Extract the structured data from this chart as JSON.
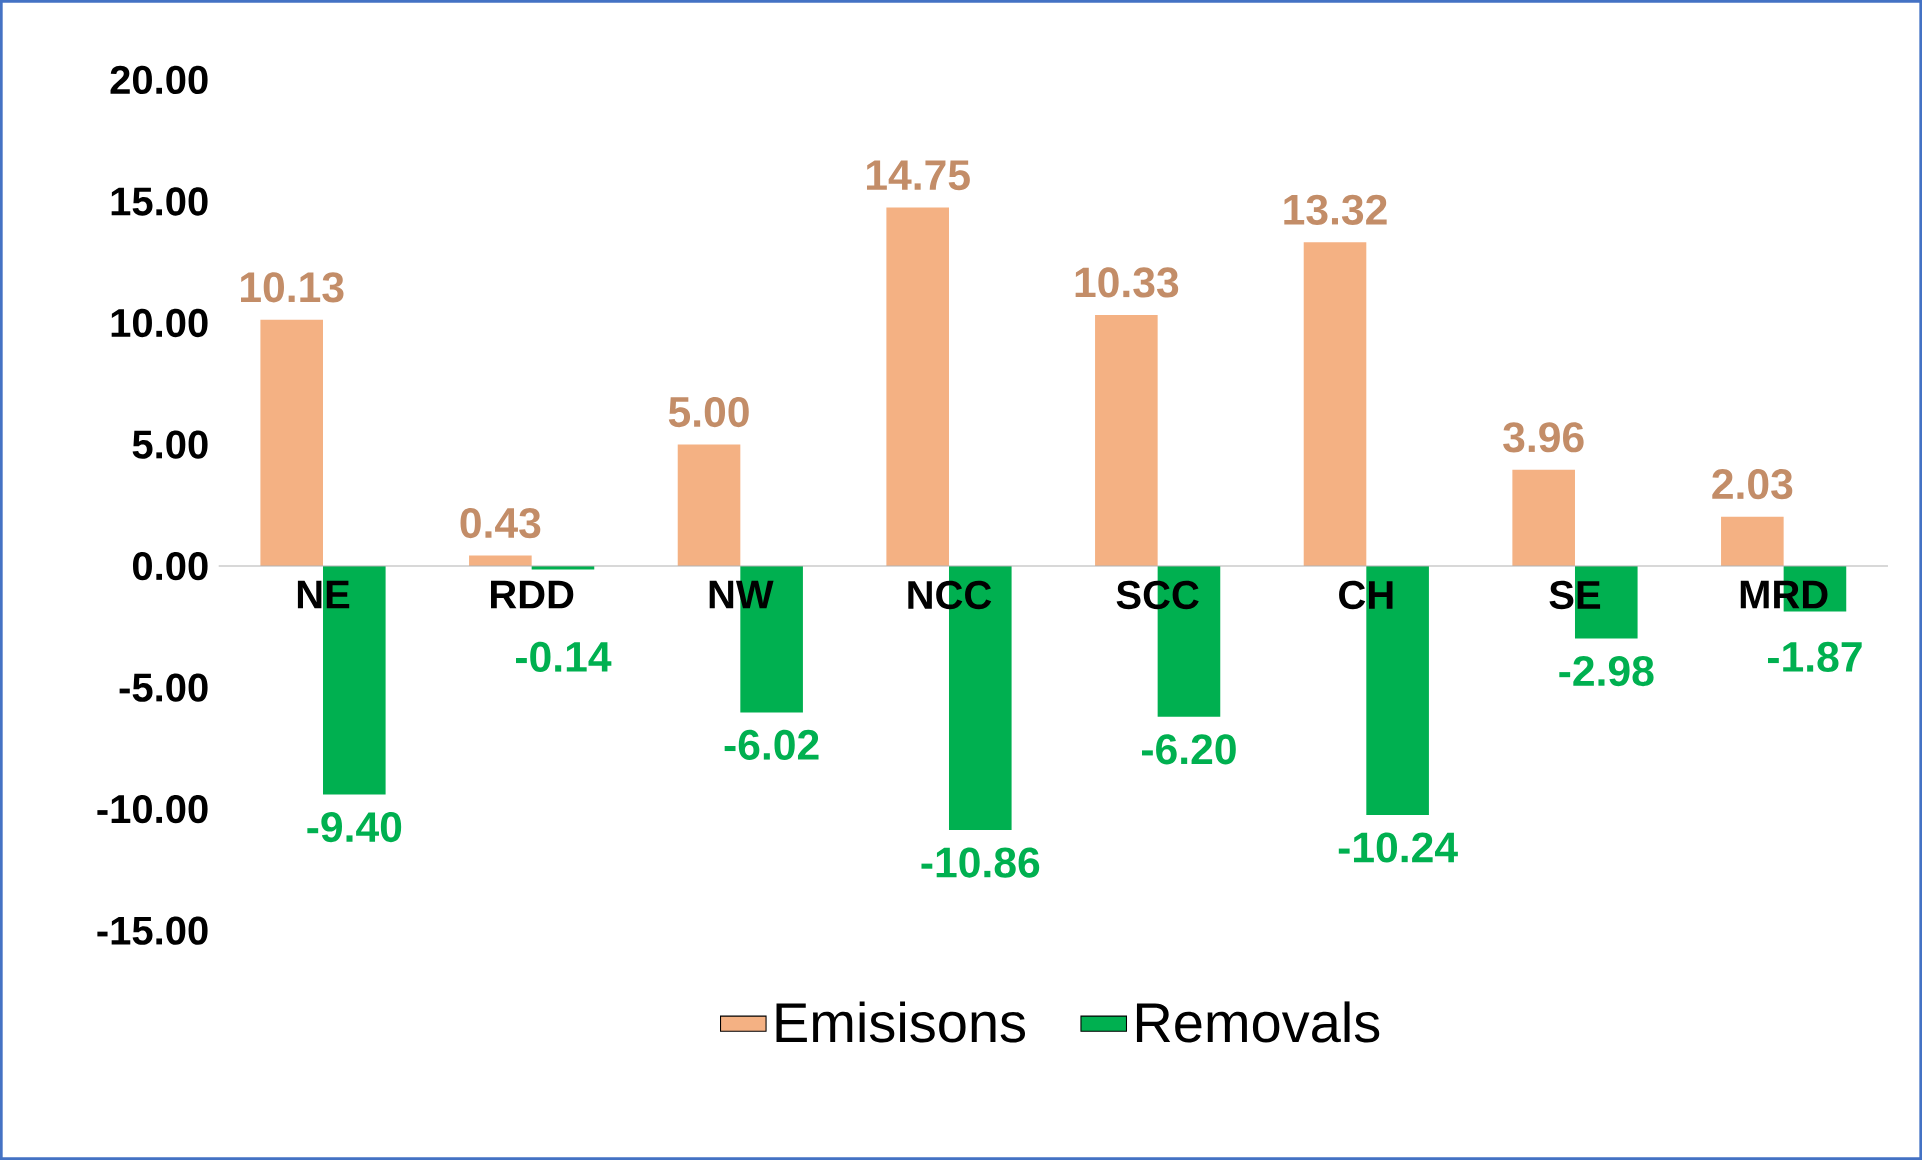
{
  "chart_data": {
    "type": "bar",
    "categories": [
      "NE",
      "RDD",
      "NW",
      "NCC",
      "SCC",
      "CH",
      "SE",
      "MRD"
    ],
    "series": [
      {
        "name": "Emisisons",
        "color": "#f4b183",
        "values": [
          10.13,
          0.43,
          5.0,
          14.75,
          10.33,
          13.32,
          3.96,
          2.03
        ],
        "value_labels": [
          "10.13",
          "0.43",
          "5.00",
          "14.75",
          "10.33",
          "13.32",
          "3.96",
          "2.03"
        ]
      },
      {
        "name": "Removals",
        "color": "#00b050",
        "values": [
          -9.4,
          -0.14,
          -6.02,
          -10.86,
          -6.2,
          -10.24,
          -2.98,
          -1.87
        ],
        "value_labels": [
          "-9.40",
          "-0.14",
          "-6.02",
          "-10.86",
          "-6.20",
          "-10.24",
          "-2.98",
          "-1.87"
        ]
      }
    ],
    "ylim": [
      -15,
      20
    ],
    "yticks": [
      {
        "value": -15,
        "label": "-15.00"
      },
      {
        "value": -10,
        "label": "-10.00"
      },
      {
        "value": -5,
        "label": "-5.00"
      },
      {
        "value": 0,
        "label": "0.00"
      },
      {
        "value": 5,
        "label": "5.00"
      },
      {
        "value": 10,
        "label": "10.00"
      },
      {
        "value": 15,
        "label": "15.00"
      },
      {
        "value": 20,
        "label": "20.00"
      }
    ],
    "grid": false,
    "legend": "bottom"
  }
}
